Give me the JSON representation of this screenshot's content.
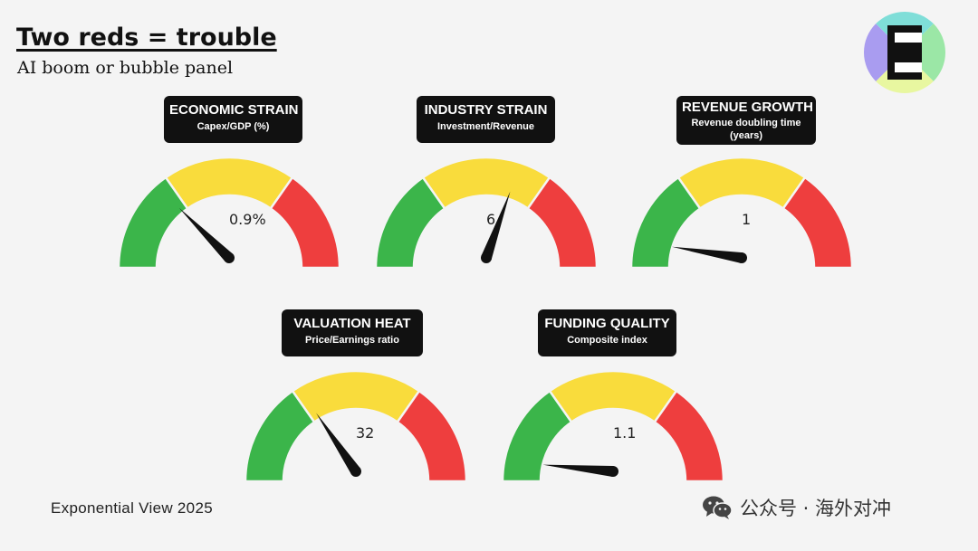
{
  "header": {
    "title": "Two reds = trouble",
    "subtitle": "AI boom or bubble panel",
    "logo_letter": "E"
  },
  "footer": {
    "credit": "Exponential View 2025",
    "watermark": "公众号 · 海外对冲",
    "watermark_icon": "wechat-icon"
  },
  "colors": {
    "green": "#3bb54a",
    "yellow": "#f9dc3c",
    "red": "#ee3e3e",
    "needle": "#111111",
    "label_bg": "#111111"
  },
  "gauges": [
    {
      "title": "ECONOMIC STRAIN",
      "subtitle": "Capex/GDP (%)",
      "value_label": "0.9%",
      "needle_level": 0.25
    },
    {
      "title": "INDUSTRY STRAIN",
      "subtitle": "Investment/Revenue",
      "value_label": "6",
      "needle_level": 0.61
    },
    {
      "title": "REVENUE GROWTH",
      "subtitle": "Revenue doubling time (years)",
      "value_label": "1",
      "needle_level": 0.05
    },
    {
      "title": "VALUATION HEAT",
      "subtitle": "Price/Earnings ratio",
      "value_label": "32",
      "needle_level": 0.31
    },
    {
      "title": "FUNDING QUALITY",
      "subtitle": "Composite index",
      "value_label": "1.1",
      "needle_level": 0.03
    }
  ]
}
